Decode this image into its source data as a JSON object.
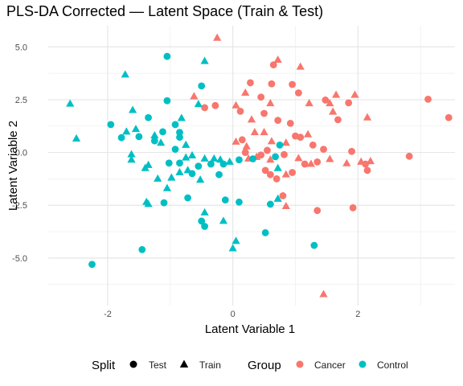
{
  "chart_data": {
    "type": "scatter",
    "title": "PLS-DA Corrected — Latent Space (Train & Test)",
    "xlabel": "Latent Variable 1",
    "ylabel": "Latent Variable 2",
    "xlim": [
      -2.95,
      3.55
    ],
    "ylim": [
      -7.25,
      6.0
    ],
    "x_ticks": [
      -2,
      0,
      2
    ],
    "x_tick_labels": [
      "-2",
      "0",
      "2"
    ],
    "y_ticks": [
      -5,
      -2.5,
      0,
      2.5,
      5
    ],
    "y_tick_labels": [
      "-5.0",
      "-2.5",
      "0.0",
      "2.5",
      "5.0"
    ],
    "grid": true,
    "legend_position": "bottom",
    "legends": {
      "split": {
        "title": "Split",
        "entries": [
          {
            "label": "Test",
            "shape": "circle"
          },
          {
            "label": "Train",
            "shape": "triangle"
          }
        ]
      },
      "group": {
        "title": "Group",
        "entries": [
          {
            "label": "Cancer",
            "color": "#F8766D"
          },
          {
            "label": "Control",
            "color": "#00BFC4"
          }
        ]
      }
    },
    "series": [
      {
        "name": "Cancer",
        "color": "#F8766D",
        "points": [
          {
            "x": -0.25,
            "y": 5.42,
            "split": "Train"
          },
          {
            "x": 0.72,
            "y": 4.38,
            "split": "Train"
          },
          {
            "x": 0.65,
            "y": 4.15,
            "split": "Test"
          },
          {
            "x": 1.08,
            "y": 4.05,
            "split": "Train"
          },
          {
            "x": 0.28,
            "y": 3.3,
            "split": "Test"
          },
          {
            "x": 0.62,
            "y": 3.25,
            "split": "Test"
          },
          {
            "x": -0.62,
            "y": 2.65,
            "split": "Train"
          },
          {
            "x": -0.28,
            "y": 2.22,
            "split": "Test"
          },
          {
            "x": -0.45,
            "y": 2.12,
            "split": "Test"
          },
          {
            "x": 0.05,
            "y": 2.22,
            "split": "Train"
          },
          {
            "x": 0.2,
            "y": 2.82,
            "split": "Train"
          },
          {
            "x": 0.45,
            "y": 2.62,
            "split": "Test"
          },
          {
            "x": 0.6,
            "y": 2.32,
            "split": "Train"
          },
          {
            "x": 0.95,
            "y": 3.22,
            "split": "Test"
          },
          {
            "x": 1.05,
            "y": 2.82,
            "split": "Test"
          },
          {
            "x": 1.22,
            "y": 2.32,
            "split": "Train"
          },
          {
            "x": 1.48,
            "y": 2.48,
            "split": "Test"
          },
          {
            "x": 1.55,
            "y": 2.32,
            "split": "Train"
          },
          {
            "x": 1.65,
            "y": 2.72,
            "split": "Train"
          },
          {
            "x": 1.95,
            "y": 2.72,
            "split": "Train"
          },
          {
            "x": 1.85,
            "y": 2.35,
            "split": "Test"
          },
          {
            "x": 1.6,
            "y": 1.92,
            "split": "Train"
          },
          {
            "x": 1.68,
            "y": 1.55,
            "split": "Test"
          },
          {
            "x": 2.15,
            "y": 1.65,
            "split": "Train"
          },
          {
            "x": 0.12,
            "y": 1.95,
            "split": "Test"
          },
          {
            "x": 0.3,
            "y": 1.55,
            "split": "Train"
          },
          {
            "x": 0.5,
            "y": 1.85,
            "split": "Test"
          },
          {
            "x": 0.72,
            "y": 1.52,
            "split": "Test"
          },
          {
            "x": 0.92,
            "y": 1.38,
            "split": "Test"
          },
          {
            "x": 1.0,
            "y": 0.78,
            "split": "Test"
          },
          {
            "x": 1.08,
            "y": 0.72,
            "split": "Test"
          },
          {
            "x": 1.28,
            "y": 0.35,
            "split": "Test"
          },
          {
            "x": 0.15,
            "y": 0.6,
            "split": "Test"
          },
          {
            "x": 0.22,
            "y": 0.28,
            "split": "Train"
          },
          {
            "x": 0.35,
            "y": 0.95,
            "split": "Train"
          },
          {
            "x": 0.05,
            "y": 0.5,
            "split": "Train"
          },
          {
            "x": 0.5,
            "y": 0.95,
            "split": "Train"
          },
          {
            "x": 0.62,
            "y": 0.52,
            "split": "Train"
          },
          {
            "x": 0.85,
            "y": 0.45,
            "split": "Train"
          },
          {
            "x": 1.2,
            "y": 0.85,
            "split": "Train"
          },
          {
            "x": 0.2,
            "y": 0.0,
            "split": "Test"
          },
          {
            "x": 0.45,
            "y": -0.12,
            "split": "Test"
          },
          {
            "x": 0.55,
            "y": 0.1,
            "split": "Test"
          },
          {
            "x": 0.82,
            "y": -0.1,
            "split": "Test"
          },
          {
            "x": 1.45,
            "y": 0.15,
            "split": "Test"
          },
          {
            "x": 1.9,
            "y": 0.05,
            "split": "Test"
          },
          {
            "x": 0.25,
            "y": -0.3,
            "split": "Train"
          },
          {
            "x": 0.38,
            "y": -0.22,
            "split": "Train"
          },
          {
            "x": 0.6,
            "y": -0.35,
            "split": "Train"
          },
          {
            "x": 1.05,
            "y": -0.28,
            "split": "Train"
          },
          {
            "x": 1.25,
            "y": -0.55,
            "split": "Train"
          },
          {
            "x": 1.55,
            "y": -0.32,
            "split": "Train"
          },
          {
            "x": 1.82,
            "y": -0.52,
            "split": "Train"
          },
          {
            "x": 2.05,
            "y": -0.45,
            "split": "Train"
          },
          {
            "x": 2.2,
            "y": -0.42,
            "split": "Train"
          },
          {
            "x": 1.15,
            "y": -0.55,
            "split": "Test"
          },
          {
            "x": 1.35,
            "y": -0.45,
            "split": "Test"
          },
          {
            "x": 2.12,
            "y": -0.55,
            "split": "Test"
          },
          {
            "x": 0.52,
            "y": -0.85,
            "split": "Test"
          },
          {
            "x": 0.95,
            "y": -0.95,
            "split": "Test"
          },
          {
            "x": 2.15,
            "y": -0.85,
            "split": "Test"
          },
          {
            "x": 0.6,
            "y": -1.05,
            "split": "Test"
          },
          {
            "x": 0.7,
            "y": -1.25,
            "split": "Test"
          },
          {
            "x": 0.85,
            "y": -1.05,
            "split": "Train"
          },
          {
            "x": 0.8,
            "y": -2.05,
            "split": "Test"
          },
          {
            "x": 0.85,
            "y": -2.55,
            "split": "Train"
          },
          {
            "x": 1.35,
            "y": -2.75,
            "split": "Test"
          },
          {
            "x": 1.92,
            "y": -2.62,
            "split": "Test"
          },
          {
            "x": 2.82,
            "y": -0.18,
            "split": "Test"
          },
          {
            "x": 3.12,
            "y": 2.52,
            "split": "Test"
          },
          {
            "x": 3.45,
            "y": 1.65,
            "split": "Test"
          },
          {
            "x": 1.45,
            "y": -6.72,
            "split": "Train"
          }
        ]
      },
      {
        "name": "Control",
        "color": "#00BFC4",
        "points": [
          {
            "x": -1.05,
            "y": 4.55,
            "split": "Test"
          },
          {
            "x": -0.45,
            "y": 4.32,
            "split": "Train"
          },
          {
            "x": -1.72,
            "y": 3.68,
            "split": "Train"
          },
          {
            "x": -0.5,
            "y": 3.15,
            "split": "Test"
          },
          {
            "x": -2.6,
            "y": 2.3,
            "split": "Train"
          },
          {
            "x": -1.05,
            "y": 2.45,
            "split": "Test"
          },
          {
            "x": -0.55,
            "y": 2.28,
            "split": "Train"
          },
          {
            "x": -1.6,
            "y": 2.0,
            "split": "Train"
          },
          {
            "x": -1.35,
            "y": 1.65,
            "split": "Test"
          },
          {
            "x": -0.82,
            "y": 1.62,
            "split": "Train"
          },
          {
            "x": -0.92,
            "y": 1.32,
            "split": "Test"
          },
          {
            "x": -2.5,
            "y": 0.65,
            "split": "Train"
          },
          {
            "x": -1.95,
            "y": 1.32,
            "split": "Test"
          },
          {
            "x": -1.55,
            "y": 1.1,
            "split": "Train"
          },
          {
            "x": -1.7,
            "y": 0.98,
            "split": "Train"
          },
          {
            "x": -1.78,
            "y": 0.7,
            "split": "Test"
          },
          {
            "x": -1.5,
            "y": 0.75,
            "split": "Test"
          },
          {
            "x": -1.25,
            "y": 0.8,
            "split": "Train"
          },
          {
            "x": -1.25,
            "y": 0.55,
            "split": "Test"
          },
          {
            "x": -1.12,
            "y": 0.98,
            "split": "Test"
          },
          {
            "x": -1.15,
            "y": 0.45,
            "split": "Train"
          },
          {
            "x": -0.85,
            "y": 0.95,
            "split": "Test"
          },
          {
            "x": -0.85,
            "y": 0.72,
            "split": "Test"
          },
          {
            "x": -0.92,
            "y": 0.15,
            "split": "Test"
          },
          {
            "x": -0.75,
            "y": 0.35,
            "split": "Train"
          },
          {
            "x": -1.62,
            "y": -0.1,
            "split": "Train"
          },
          {
            "x": -1.62,
            "y": -0.35,
            "split": "Train"
          },
          {
            "x": -0.75,
            "y": -0.25,
            "split": "Train"
          },
          {
            "x": -0.65,
            "y": -0.15,
            "split": "Train"
          },
          {
            "x": -0.45,
            "y": -0.3,
            "split": "Train"
          },
          {
            "x": -0.35,
            "y": -0.55,
            "split": "Test"
          },
          {
            "x": -0.3,
            "y": -0.3,
            "split": "Train"
          },
          {
            "x": -0.15,
            "y": -0.55,
            "split": "Test"
          },
          {
            "x": -0.2,
            "y": -0.35,
            "split": "Train"
          },
          {
            "x": -0.05,
            "y": -0.45,
            "split": "Train"
          },
          {
            "x": 0.1,
            "y": -0.35,
            "split": "Test"
          },
          {
            "x": 0.32,
            "y": -0.3,
            "split": "Test"
          },
          {
            "x": 0.68,
            "y": -0.2,
            "split": "Test"
          },
          {
            "x": -1.35,
            "y": -0.6,
            "split": "Train"
          },
          {
            "x": -1.02,
            "y": -0.5,
            "split": "Test"
          },
          {
            "x": -0.85,
            "y": -0.5,
            "split": "Test"
          },
          {
            "x": -0.72,
            "y": -0.85,
            "split": "Train"
          },
          {
            "x": -0.55,
            "y": -0.65,
            "split": "Test"
          },
          {
            "x": -0.65,
            "y": -1.0,
            "split": "Test"
          },
          {
            "x": -0.85,
            "y": -0.95,
            "split": "Train"
          },
          {
            "x": -0.98,
            "y": -1.2,
            "split": "Train"
          },
          {
            "x": -1.2,
            "y": -1.25,
            "split": "Train"
          },
          {
            "x": -1.4,
            "y": -0.75,
            "split": "Train"
          },
          {
            "x": -0.52,
            "y": -1.3,
            "split": "Train"
          },
          {
            "x": -0.22,
            "y": -1.05,
            "split": "Test"
          },
          {
            "x": -1.05,
            "y": -1.7,
            "split": "Train"
          },
          {
            "x": -1.38,
            "y": -2.35,
            "split": "Train"
          },
          {
            "x": -1.35,
            "y": -2.45,
            "split": "Train"
          },
          {
            "x": -1.1,
            "y": -2.38,
            "split": "Test"
          },
          {
            "x": -0.72,
            "y": -2.15,
            "split": "Test"
          },
          {
            "x": 0.1,
            "y": -2.35,
            "split": "Test"
          },
          {
            "x": -0.12,
            "y": -2.25,
            "split": "Test"
          },
          {
            "x": 0.72,
            "y": -0.75,
            "split": "Train"
          },
          {
            "x": 0.6,
            "y": -2.45,
            "split": "Test"
          },
          {
            "x": 0.72,
            "y": -2.2,
            "split": "Train"
          },
          {
            "x": -0.45,
            "y": -2.85,
            "split": "Train"
          },
          {
            "x": -0.5,
            "y": -3.25,
            "split": "Test"
          },
          {
            "x": -0.45,
            "y": -3.5,
            "split": "Test"
          },
          {
            "x": -0.15,
            "y": -3.25,
            "split": "Train"
          },
          {
            "x": -1.45,
            "y": -4.6,
            "split": "Test"
          },
          {
            "x": -2.25,
            "y": -5.3,
            "split": "Test"
          },
          {
            "x": 0.05,
            "y": -4.2,
            "split": "Train"
          },
          {
            "x": 0.0,
            "y": -4.55,
            "split": "Train"
          },
          {
            "x": 0.52,
            "y": -3.8,
            "split": "Test"
          },
          {
            "x": 1.3,
            "y": -4.4,
            "split": "Test"
          },
          {
            "x": 0.75,
            "y": 0.35,
            "split": "Test"
          }
        ]
      }
    ]
  }
}
